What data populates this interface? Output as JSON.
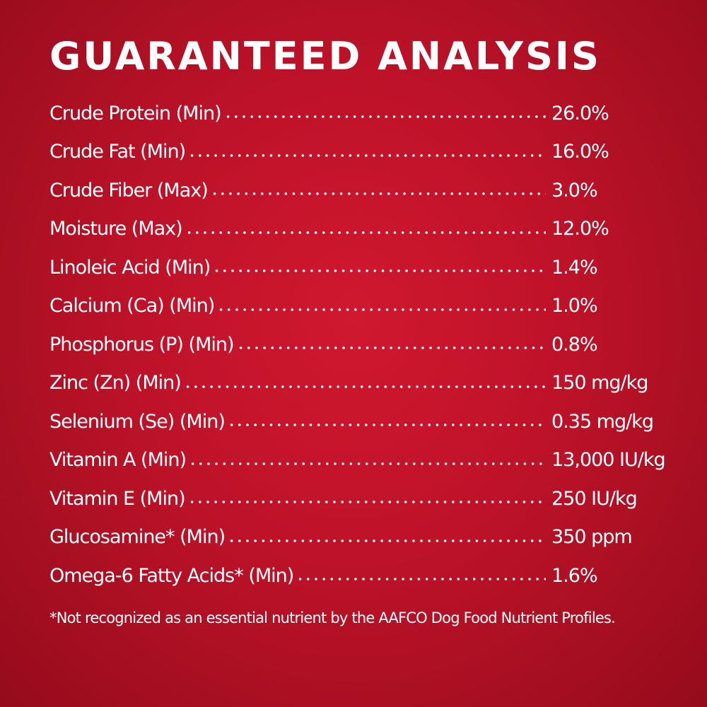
{
  "title": "GUARANTEED ANALYSIS",
  "table": {
    "rows": [
      [
        "Crude Protein (Min)",
        "26.0%"
      ],
      [
        "Crude Fat (Min)",
        "16.0%"
      ],
      [
        "Crude Fiber (Max)",
        "3.0%"
      ],
      [
        "Moisture (Max)",
        "12.0%"
      ],
      [
        "Linoleic Acid (Min)",
        "1.4%"
      ],
      [
        "Calcium (Ca) (Min)",
        "1.0%"
      ],
      [
        "Phosphorus (P) (Min)",
        "0.8%"
      ],
      [
        "Zinc (Zn) (Min)",
        "150 mg/kg"
      ],
      [
        "Selenium (Se) (Min)",
        "0.35 mg/kg"
      ],
      [
        "Vitamin A (Min)",
        "13,000 IU/kg"
      ],
      [
        "Vitamin E (Min)",
        "250 IU/kg"
      ],
      [
        "Glucosamine* (Min)",
        "350 ppm"
      ],
      [
        "Omega-6 Fatty Acids* (Min)",
        "1.6%"
      ]
    ]
  },
  "footnote": "*Not recognized as an essential nutrient by the AAFCO Dog Food Nutrient Profiles."
}
